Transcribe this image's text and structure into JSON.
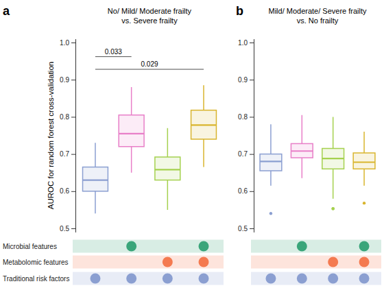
{
  "chart_data": [
    {
      "type": "box",
      "panel": "a",
      "title": [
        "No/ Mild/ Moderate frailty",
        "vs. Severe frailty"
      ],
      "y_label": "AUROC for random forest cross-validation",
      "categories": [
        null,
        null,
        null,
        null
      ],
      "ylim": [
        0.49,
        1.01
      ],
      "yticks": [
        0.5,
        0.6,
        0.7,
        0.8,
        0.9,
        {
          "value": 1,
          "label": "1.0"
        }
      ],
      "boxes": [
        {
          "color": "#8b9fd1",
          "min": 0.54,
          "q1": 0.6,
          "median": 0.63,
          "q3": 0.665,
          "max": 0.73,
          "outliers": []
        },
        {
          "color": "#e87fc8",
          "min": 0.65,
          "q1": 0.72,
          "median": 0.755,
          "q3": 0.805,
          "max": 0.88,
          "outliers": []
        },
        {
          "color": "#a5d14f",
          "min": 0.55,
          "q1": 0.63,
          "median": 0.658,
          "q3": 0.692,
          "max": 0.77,
          "outliers": []
        },
        {
          "color": "#d9b52e",
          "min": 0.665,
          "q1": 0.74,
          "median": 0.778,
          "q3": 0.818,
          "max": 0.885,
          "outliers": []
        }
      ],
      "annotations": [
        {
          "text": "0.033",
          "from": 0,
          "to": 1,
          "y": 0.962
        },
        {
          "text": "0.029",
          "from": 0,
          "to": 3,
          "y": 0.928
        }
      ]
    },
    {
      "type": "box",
      "panel": "b",
      "title": [
        "Mild/ Moderate/ Severe frailty",
        "vs. No frailty"
      ],
      "categories": [
        null,
        null,
        null,
        null
      ],
      "ylim": [
        0.49,
        1.01
      ],
      "yticks": [
        0.5,
        0.6,
        0.7,
        0.8,
        0.9,
        {
          "value": 1,
          "label": "1.0"
        }
      ],
      "boxes": [
        {
          "color": "#8b9fd1",
          "min": 0.615,
          "q1": 0.655,
          "median": 0.68,
          "q3": 0.7,
          "max": 0.78,
          "outliers": [
            0.54
          ]
        },
        {
          "color": "#e87fc8",
          "min": 0.635,
          "q1": 0.69,
          "median": 0.708,
          "q3": 0.728,
          "max": 0.805,
          "outliers": []
        },
        {
          "color": "#a5d14f",
          "min": 0.58,
          "q1": 0.66,
          "median": 0.688,
          "q3": 0.715,
          "max": 0.8,
          "outliers": [
            0.553,
            0.553
          ]
        },
        {
          "color": "#d9b52e",
          "min": 0.615,
          "q1": 0.66,
          "median": 0.678,
          "q3": 0.703,
          "max": 0.76,
          "outliers": [
            0.568
          ]
        }
      ]
    }
  ],
  "feature_matrix": {
    "rows": [
      {
        "name": "Microbial features",
        "color": "#3aa57a",
        "included": [
          false,
          true,
          false,
          true
        ]
      },
      {
        "name": "Metabolomic features",
        "color": "#f47a50",
        "included": [
          false,
          false,
          true,
          true
        ]
      },
      {
        "name": "Traditional risk factors",
        "color": "#8b9fd1",
        "included": [
          true,
          true,
          true,
          true
        ]
      }
    ]
  }
}
